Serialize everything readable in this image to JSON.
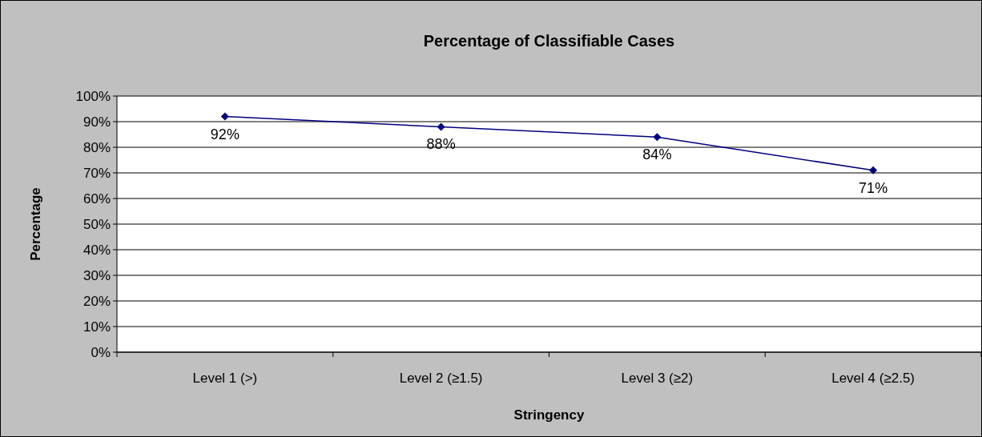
{
  "chart_data": {
    "type": "line",
    "title": "Percentage of Classifiable Cases",
    "xlabel": "Stringency",
    "ylabel": "Percentage",
    "categories": [
      "Level 1 (>)",
      "Level 2 (≥1.5)",
      "Level 3 (≥2)",
      "Level 4 (≥2.5)"
    ],
    "series": [
      {
        "color": "#000080",
        "values": [
          92,
          88,
          84,
          71
        ],
        "value_labels": [
          "92%",
          "88%",
          "84%",
          "71%"
        ]
      }
    ],
    "ylim": [
      0,
      100
    ],
    "yticks": [
      {
        "value": 0,
        "label": "0%"
      },
      {
        "value": 10,
        "label": "10%"
      },
      {
        "value": 20,
        "label": "20%"
      },
      {
        "value": 30,
        "label": "30%"
      },
      {
        "value": 40,
        "label": "40%"
      },
      {
        "value": 50,
        "label": "50%"
      },
      {
        "value": 60,
        "label": "60%"
      },
      {
        "value": 70,
        "label": "70%"
      },
      {
        "value": 80,
        "label": "80%"
      },
      {
        "value": 90,
        "label": "90%"
      },
      {
        "value": 100,
        "label": "100%"
      }
    ],
    "grid": "y",
    "marker": "diamond",
    "line_style": "solid"
  }
}
